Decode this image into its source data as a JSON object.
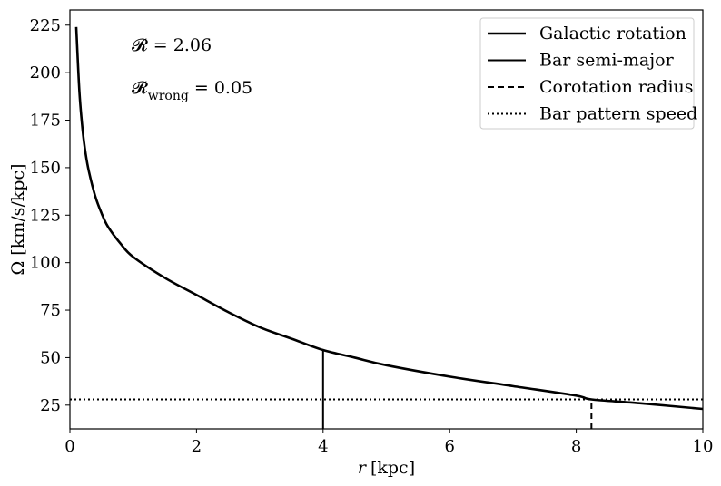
{
  "chart_data": {
    "type": "line",
    "title": "",
    "xlabel": "r [kpc]",
    "xlabel_var": "r",
    "xlabel_unit": "[kpc]",
    "ylabel": "Ω [km/s/kpc]",
    "xlim": [
      0,
      10
    ],
    "ylim": [
      12.5,
      233
    ],
    "xticks": [
      0,
      2,
      4,
      6,
      8,
      10
    ],
    "yticks": [
      25,
      50,
      75,
      100,
      125,
      150,
      175,
      200,
      225
    ],
    "grid": false,
    "legend_position": "top-right",
    "annotations": [
      {
        "text": "𝓡 = 2.06"
      },
      {
        "text_main": "𝓡",
        "text_sub": "wrong",
        "text_rest": " = 0.05"
      }
    ],
    "series": [
      {
        "name": "Galactic rotation",
        "style": "solid-thick",
        "color": "#000000",
        "x": [
          0.1,
          0.15,
          0.2,
          0.25,
          0.3,
          0.4,
          0.5,
          0.6,
          0.8,
          1.0,
          1.5,
          2.0,
          2.5,
          3.0,
          3.5,
          4.0,
          4.5,
          5.0,
          6.0,
          7.0,
          8.0,
          8.24,
          9.0,
          10.0
        ],
        "y": [
          224,
          190,
          170,
          157,
          148,
          135,
          126,
          119,
          110,
          103,
          92,
          83,
          74,
          66,
          60,
          54,
          50,
          46,
          40,
          35,
          30,
          28,
          26,
          23
        ]
      },
      {
        "name": "Bar semi-major",
        "style": "solid",
        "color": "#000000",
        "x": [
          4.0,
          4.0
        ],
        "y": [
          12.5,
          54
        ]
      },
      {
        "name": "Corotation radius",
        "style": "dashed",
        "color": "#000000",
        "x": [
          8.24,
          8.24
        ],
        "y": [
          12.5,
          28
        ]
      },
      {
        "name": "Bar pattern speed",
        "style": "dotted",
        "color": "#000000",
        "x": [
          0,
          10
        ],
        "y": [
          28,
          28
        ]
      }
    ]
  }
}
